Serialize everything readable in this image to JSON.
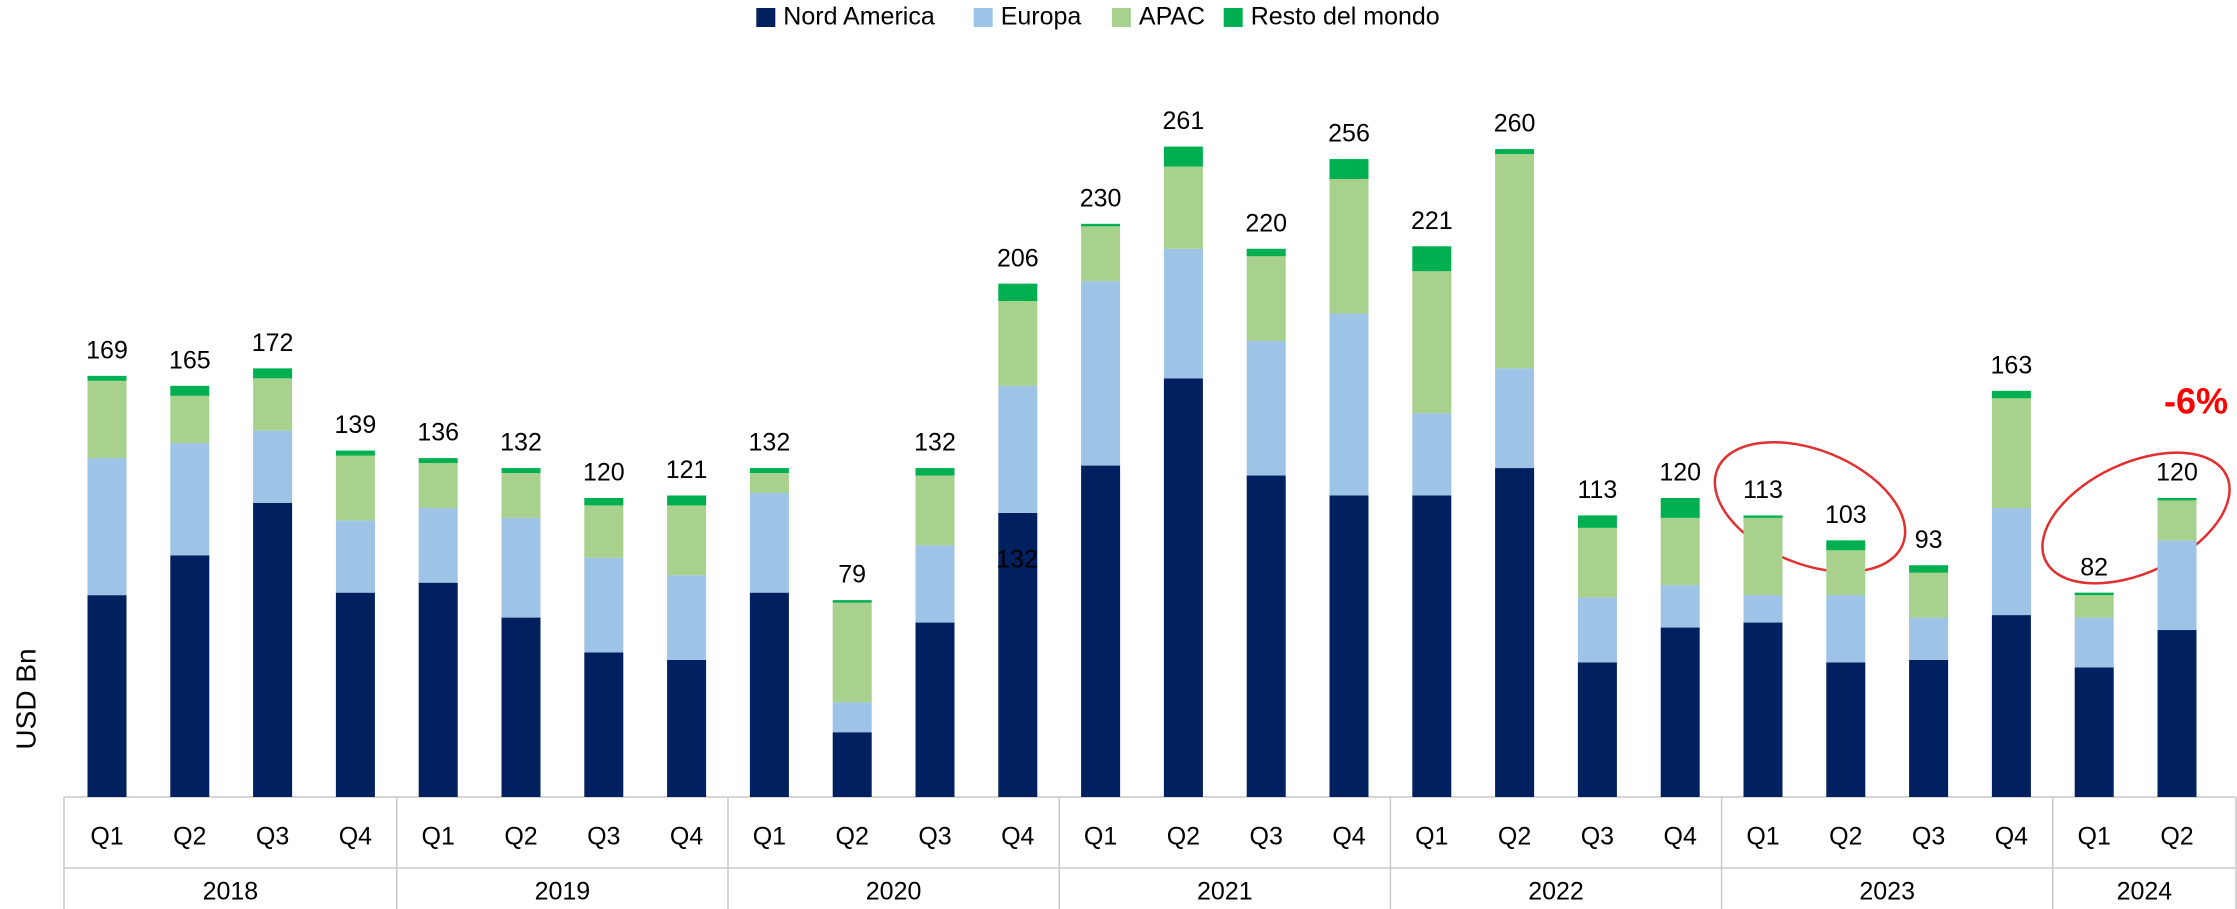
{
  "chart_data": {
    "type": "stacked_bar",
    "y_label": "USD Bn",
    "groups": [
      {
        "label": "2018",
        "categories": [
          "Q1",
          "Q2",
          "Q3",
          "Q4"
        ]
      },
      {
        "label": "2019",
        "categories": [
          "Q1",
          "Q2",
          "Q3",
          "Q4"
        ]
      },
      {
        "label": "2020",
        "categories": [
          "Q1",
          "Q2",
          "Q3",
          "Q4"
        ]
      },
      {
        "label": "2021",
        "categories": [
          "Q1",
          "Q2",
          "Q3",
          "Q4"
        ]
      },
      {
        "label": "2022",
        "categories": [
          "Q1",
          "Q2",
          "Q3",
          "Q4"
        ]
      },
      {
        "label": "2023",
        "categories": [
          "Q1",
          "Q2",
          "Q3",
          "Q4"
        ]
      },
      {
        "label": "2024",
        "categories": [
          "Q1",
          "Q2"
        ]
      }
    ],
    "series": [
      {
        "name": "Nord America",
        "color": "#002060",
        "values": [
          81,
          97,
          118,
          82,
          86,
          72,
          58,
          55,
          82,
          26,
          70,
          114,
          133,
          168,
          129,
          121,
          121,
          132,
          54,
          68,
          70,
          54,
          55,
          73,
          52,
          67
        ]
      },
      {
        "name": "Europa",
        "color": "#9dc3e6",
        "values": [
          55,
          45,
          29,
          29,
          30,
          40,
          38,
          34,
          40,
          12,
          31,
          51,
          74,
          52,
          54,
          73,
          33,
          40,
          26,
          17,
          11,
          27,
          17,
          43,
          20,
          36
        ]
      },
      {
        "name": "APAC",
        "color": "#a9d18e",
        "values": [
          31,
          19,
          21,
          26,
          18,
          18,
          21,
          28,
          8,
          40,
          28,
          34,
          22,
          33,
          34,
          54,
          57,
          86,
          28,
          27,
          31,
          18,
          18,
          44,
          9,
          16
        ]
      },
      {
        "name": "Resto del mondo",
        "color": "#00b050",
        "values": [
          2,
          4,
          4,
          2,
          2,
          2,
          3,
          4,
          2,
          1,
          3,
          7,
          1,
          8,
          3,
          8,
          10,
          2,
          5,
          8,
          1,
          4,
          3,
          3,
          1,
          1
        ]
      }
    ],
    "totals": [
      169,
      165,
      172,
      139,
      136,
      132,
      120,
      121,
      132,
      79,
      132,
      206,
      230,
      261,
      220,
      256,
      221,
      260,
      113,
      120,
      113,
      103,
      93,
      163,
      82,
      120
    ],
    "annotations": [
      "132",
      "-6%"
    ],
    "legend": "top"
  }
}
